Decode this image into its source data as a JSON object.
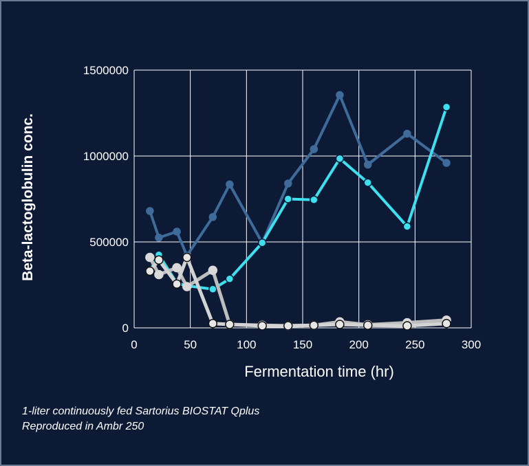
{
  "caption": {
    "line1": "1-liter continuously fed Sartorius BIOSTAT Qplus",
    "line2": "Reproduced in Ambr 250"
  },
  "colors": {
    "background": "#0c1a36",
    "grid": "#ffffff",
    "dark_blue": "#3e6b9a",
    "cyan": "#3ee0f0",
    "light_gray": "#d3d3d3",
    "mid_gray": "#bdbdbd",
    "white_marker": "#e6e6e6"
  },
  "chart_data": {
    "type": "line",
    "xlabel": "Fermentation time (hr)",
    "ylabel": "Beta-lactoglobulin conc.",
    "xlim": [
      0,
      300
    ],
    "ylim": [
      0,
      1500000
    ],
    "x_ticks": [
      "0",
      "50",
      "100",
      "150",
      "200",
      "250",
      "300"
    ],
    "y_ticks": [
      "0",
      "500000",
      "1000000",
      "1500000"
    ],
    "grid": true,
    "legend": "none",
    "series": [
      {
        "color": "#3e6b9a",
        "points": [
          [
            14,
            680000
          ],
          [
            22,
            525000
          ],
          [
            38,
            560000
          ],
          [
            47,
            420000
          ],
          [
            70,
            645000
          ],
          [
            85,
            835000
          ],
          [
            114,
            495000
          ],
          [
            137,
            840000
          ],
          [
            160,
            1040000
          ],
          [
            183,
            1355000
          ],
          [
            208,
            950000
          ],
          [
            243,
            1130000
          ],
          [
            278,
            960000
          ]
        ]
      },
      {
        "color": "#3ee0f0",
        "points": [
          [
            14,
            330000
          ],
          [
            22,
            425000
          ],
          [
            38,
            260000
          ],
          [
            47,
            245000
          ],
          [
            70,
            225000
          ],
          [
            85,
            285000
          ],
          [
            114,
            495000
          ],
          [
            137,
            750000
          ],
          [
            160,
            745000
          ],
          [
            183,
            985000
          ],
          [
            208,
            845000
          ],
          [
            243,
            590000
          ],
          [
            278,
            1285000
          ]
        ]
      },
      {
        "color": "#bdbdbd",
        "points": [
          [
            14,
            410000
          ],
          [
            22,
            310000
          ],
          [
            38,
            350000
          ],
          [
            47,
            240000
          ],
          [
            70,
            335000
          ],
          [
            85,
            20000
          ],
          [
            114,
            15000
          ],
          [
            137,
            12000
          ],
          [
            160,
            15000
          ],
          [
            183,
            35000
          ],
          [
            208,
            18000
          ],
          [
            243,
            30000
          ],
          [
            278,
            45000
          ]
        ]
      },
      {
        "color": "#d3d3d3",
        "points": [
          [
            14,
            330000
          ],
          [
            22,
            395000
          ],
          [
            38,
            255000
          ],
          [
            47,
            410000
          ],
          [
            70,
            25000
          ],
          [
            85,
            20000
          ],
          [
            114,
            12000
          ],
          [
            137,
            12000
          ],
          [
            160,
            15000
          ],
          [
            183,
            20000
          ],
          [
            208,
            15000
          ],
          [
            243,
            12000
          ],
          [
            278,
            25000
          ]
        ]
      }
    ]
  }
}
